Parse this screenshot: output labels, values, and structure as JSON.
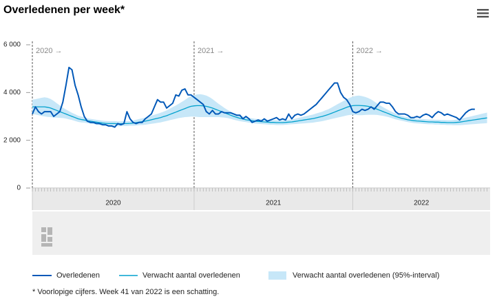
{
  "chart_data": {
    "type": "line",
    "title": "Overledenen per week*",
    "footnote": "* Voorlopige cijfers. Week 41 van 2022 is een schatting.",
    "years": [
      {
        "label": "2020",
        "annotation": "2020 →",
        "weeks": 53
      },
      {
        "label": "2021",
        "annotation": "2021 →",
        "weeks": 52
      },
      {
        "label": "2022",
        "annotation": "2022 →",
        "weeks": 45
      }
    ],
    "ylim": [
      0,
      6000
    ],
    "yticks": [
      {
        "value": 0,
        "label": "0"
      },
      {
        "value": 2000,
        "label": "2 000"
      },
      {
        "value": 4000,
        "label": "4 000"
      },
      {
        "value": 6000,
        "label": "6 000"
      }
    ],
    "grid": false,
    "series": [
      {
        "name": "Overledenen",
        "color": "#0058b8",
        "values": [
          3100,
          3400,
          3200,
          3100,
          3200,
          3200,
          3200,
          3000,
          3100,
          3200,
          3600,
          4300,
          5050,
          4950,
          4300,
          3900,
          3400,
          3000,
          2800,
          2750,
          2750,
          2700,
          2700,
          2650,
          2650,
          2600,
          2600,
          2550,
          2700,
          2650,
          2700,
          3200,
          2900,
          2750,
          2700,
          2750,
          2750,
          2900,
          3000,
          3100,
          3400,
          3700,
          3600,
          3600,
          3350,
          3450,
          3550,
          3900,
          3850,
          4100,
          4150,
          3900,
          3900,
          3800,
          3700,
          3600,
          3500,
          3200,
          3100,
          3250,
          3100,
          3100,
          3200,
          3150,
          3150,
          3150,
          3100,
          3050,
          3050,
          2900,
          3000,
          2900,
          2750,
          2800,
          2850,
          2800,
          2900,
          2800,
          2850,
          2900,
          2950,
          2850,
          2900,
          2850,
          3100,
          2900,
          3050,
          3100,
          3050,
          3100,
          3200,
          3300,
          3400,
          3500,
          3650,
          3800,
          3950,
          4100,
          4250,
          4400,
          4400,
          4000,
          3800,
          3700,
          3500,
          3200,
          3150,
          3200,
          3300,
          3250,
          3300,
          3400,
          3300,
          3450,
          3600,
          3600,
          3550,
          3550,
          3400,
          3200,
          3100,
          3100,
          3100,
          3050,
          2950,
          2950,
          3000,
          2950,
          3050,
          3100,
          3050,
          2950,
          3100,
          3200,
          3150,
          3050,
          3100,
          3050,
          3000,
          2950,
          2850,
          3000,
          3150,
          3250,
          3300,
          3300
        ]
      },
      {
        "name": "Verwacht aantal overledenen",
        "color": "#00a1cd",
        "band_name": "Verwacht aantal overledenen (95%-interval)",
        "band_color": "#c7e7f8",
        "values": [
          3400,
          3400,
          3400,
          3400,
          3400,
          3380,
          3350,
          3300,
          3250,
          3200,
          3150,
          3100,
          3050,
          3000,
          2950,
          2900,
          2870,
          2850,
          2820,
          2800,
          2780,
          2760,
          2740,
          2720,
          2710,
          2700,
          2700,
          2700,
          2690,
          2690,
          2700,
          2700,
          2710,
          2720,
          2740,
          2760,
          2780,
          2800,
          2830,
          2860,
          2890,
          2920,
          2950,
          2990,
          3030,
          3080,
          3130,
          3180,
          3230,
          3280,
          3330,
          3380,
          3420,
          3440,
          3450,
          3450,
          3440,
          3420,
          3390,
          3350,
          3300,
          3250,
          3200,
          3150,
          3100,
          3050,
          3000,
          2960,
          2920,
          2890,
          2860,
          2840,
          2820,
          2800,
          2790,
          2780,
          2770,
          2760,
          2750,
          2750,
          2740,
          2740,
          2740,
          2750,
          2760,
          2770,
          2790,
          2810,
          2830,
          2850,
          2870,
          2890,
          2910,
          2940,
          2970,
          3000,
          3040,
          3080,
          3130,
          3180,
          3230,
          3280,
          3330,
          3380,
          3420,
          3450,
          3460,
          3460,
          3450,
          3440,
          3420,
          3390,
          3350,
          3300,
          3250,
          3200,
          3150,
          3100,
          3050,
          3000,
          2960,
          2920,
          2890,
          2860,
          2840,
          2820,
          2810,
          2800,
          2790,
          2780,
          2770,
          2770,
          2760,
          2760,
          2750,
          2750,
          2740,
          2740,
          2740,
          2750,
          2760,
          2780,
          2800,
          2820,
          2840,
          2860,
          2880,
          2900,
          2920,
          2940
        ],
        "errors": [
          300,
          320,
          350,
          380,
          400,
          400,
          380,
          350,
          300,
          260,
          220,
          190,
          170,
          150,
          140,
          130,
          120,
          110,
          100,
          100,
          100,
          100,
          100,
          100,
          100,
          100,
          100,
          100,
          100,
          100,
          100,
          100,
          100,
          110,
          120,
          130,
          140,
          150,
          160,
          170,
          180,
          190,
          200,
          210,
          220,
          240,
          260,
          280,
          300,
          330,
          360,
          400,
          430,
          450,
          470,
          480,
          470,
          450,
          420,
          380,
          330,
          280,
          240,
          200,
          170,
          150,
          140,
          130,
          120,
          110,
          100,
          100,
          100,
          100,
          100,
          100,
          100,
          100,
          100,
          100,
          100,
          100,
          100,
          100,
          100,
          100,
          110,
          120,
          130,
          140,
          150,
          160,
          170,
          180,
          190,
          200,
          210,
          220,
          240,
          260,
          280,
          300,
          320,
          340,
          360,
          380,
          400,
          410,
          400,
          380,
          350,
          320,
          280,
          240,
          210,
          180,
          160,
          140,
          130,
          120,
          110,
          100,
          100,
          100,
          100,
          100,
          100,
          100,
          100,
          100,
          100,
          100,
          100,
          100,
          100,
          100,
          100,
          100,
          110,
          120,
          130,
          140,
          150,
          160,
          170,
          180,
          190,
          200,
          210,
          220
        ]
      }
    ]
  }
}
